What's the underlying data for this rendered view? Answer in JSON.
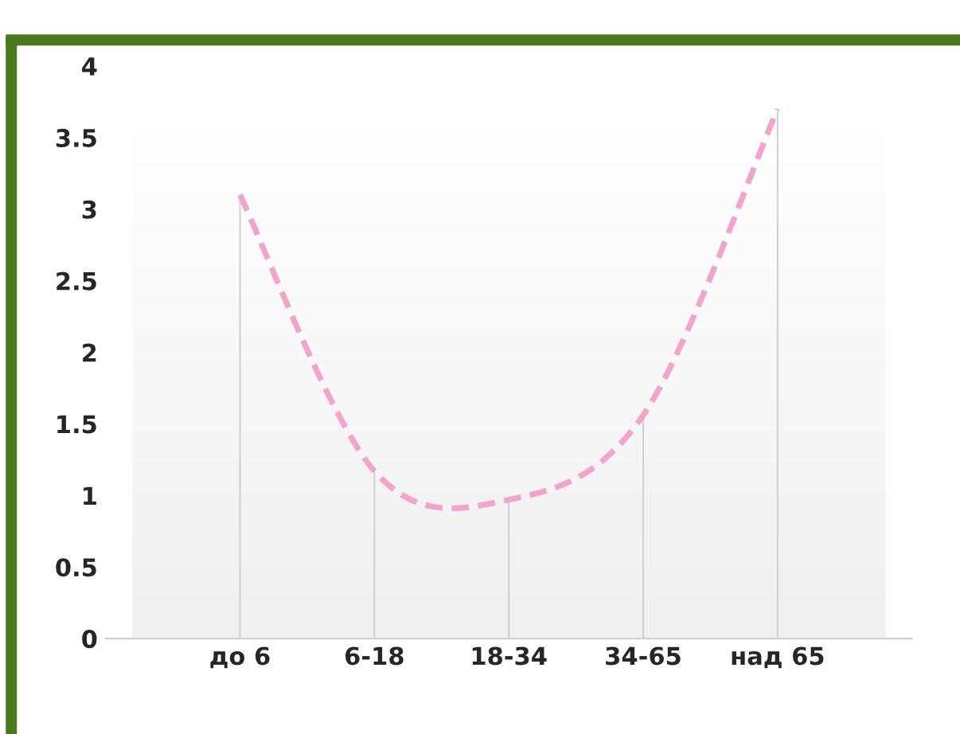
{
  "chart_data": {
    "type": "line",
    "categories": [
      "до 6",
      "6-18",
      "18-34",
      "34-65",
      "над 65"
    ],
    "series": [
      {
        "type": "bar",
        "color": "#d0d0d0",
        "values": [
          3.1,
          1.17,
          0.97,
          1.56,
          3.7
        ]
      },
      {
        "color": "#f4a3cc",
        "values": [
          3.1,
          1.17,
          0.97,
          1.56,
          3.7
        ]
      }
    ],
    "ylim": [
      0,
      4
    ],
    "yticks": [
      0,
      0.5,
      1,
      1.5,
      2,
      2.5,
      3,
      3.5,
      4
    ],
    "line_style": "dashed",
    "marker": "none",
    "grid": false,
    "legend": false
  }
}
